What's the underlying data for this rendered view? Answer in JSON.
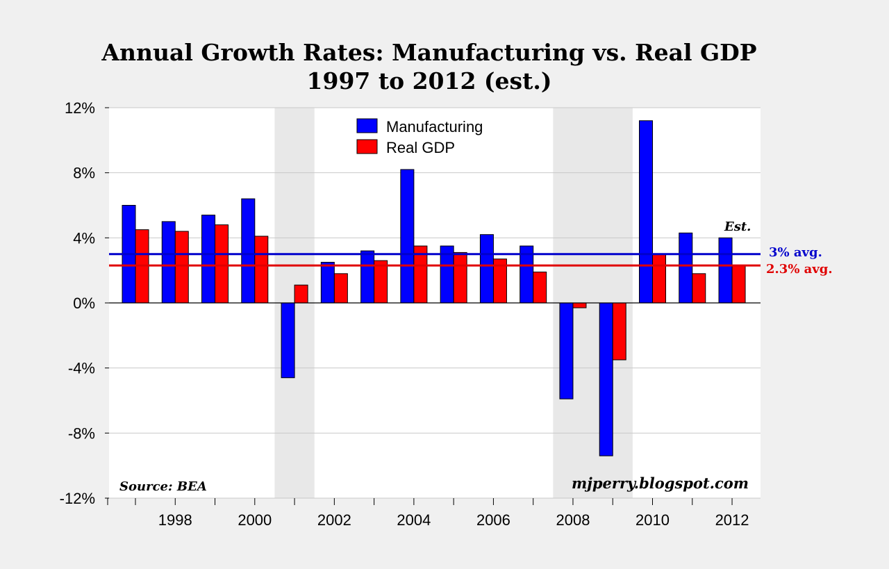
{
  "chart_data": {
    "type": "bar",
    "title": "Annual Growth Rates: Manufacturing vs. Real GDP",
    "subtitle": "1997 to 2012 (est.)",
    "categories": [
      1997,
      1998,
      1999,
      2000,
      2001,
      2002,
      2003,
      2004,
      2005,
      2006,
      2007,
      2008,
      2009,
      2010,
      2011,
      2012
    ],
    "x_tick_labels": [
      "1998",
      "2000",
      "2002",
      "2004",
      "2006",
      "2008",
      "2010",
      "2012"
    ],
    "y_tick_labels": [
      "12%",
      "8%",
      "4%",
      "0%",
      "-4%",
      "-8%",
      "-12%"
    ],
    "ylim": [
      -12,
      12
    ],
    "grid": true,
    "legend_position": "top-center",
    "series": [
      {
        "name": "Manufacturing",
        "color": "#0000ff",
        "values": [
          6.0,
          5.0,
          5.4,
          6.4,
          -4.6,
          2.5,
          3.2,
          8.2,
          3.5,
          4.2,
          3.5,
          -5.9,
          -9.4,
          11.2,
          4.3,
          4.0
        ]
      },
      {
        "name": "Real GDP",
        "color": "#ff0000",
        "values": [
          4.5,
          4.4,
          4.8,
          4.1,
          1.1,
          1.8,
          2.6,
          3.5,
          3.1,
          2.7,
          1.9,
          -0.3,
          -3.5,
          3.0,
          1.8,
          2.3
        ]
      }
    ],
    "averages": [
      {
        "label": "3% avg.",
        "value": 3.0,
        "color": "#0000cc"
      },
      {
        "label": "2.3% avg.",
        "value": 2.3,
        "color": "#e00000"
      }
    ],
    "shaded_periods": [
      [
        2000.5,
        2001.5
      ],
      [
        2007.5,
        2009.5
      ]
    ],
    "annotations": {
      "estimate": "Est.",
      "source": "Source: BEA",
      "site": "mjperry.blogspot.com"
    }
  }
}
